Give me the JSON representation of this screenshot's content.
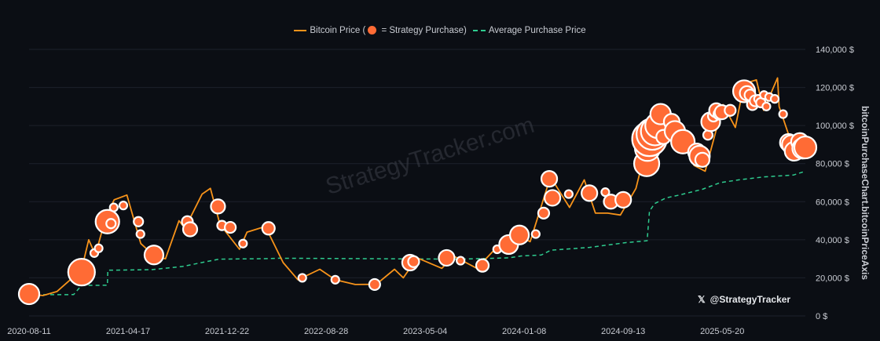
{
  "legend": {
    "price_label": "Bitcoin Price (",
    "price_label_suffix": " = Strategy Purchase)",
    "avg_label": "Average Purchase Price"
  },
  "watermark": "StrategyTracker.com",
  "handle": "@StrategyTracker",
  "colors": {
    "background": "#0b0e14",
    "price_line": "#f7931a",
    "purchase_dot": "#ff6b35",
    "avg_line": "#2ecc8f",
    "grid": "#1c212b",
    "text": "#c9ccd3"
  },
  "chart_data": {
    "type": "line",
    "title": "",
    "xlabel": "",
    "ylabel": "bitcoinPurchaseChart.bitcoinPriceAxis",
    "x_range": [
      "2020-08-11",
      "2025-12-15"
    ],
    "ylim": [
      0,
      140000
    ],
    "y_ticks": [
      "0 $",
      "20,000 $",
      "40,000 $",
      "60,000 $",
      "80,000 $",
      "100,000 $",
      "120,000 $",
      "140,000 $"
    ],
    "y_tick_values": [
      0,
      20000,
      40000,
      60000,
      80000,
      100000,
      120000,
      140000
    ],
    "x_ticks": [
      "2020-08-11",
      "2021-04-17",
      "2021-12-22",
      "2022-08-28",
      "2023-05-04",
      "2024-01-08",
      "2024-09-13",
      "2025-05-20"
    ],
    "grid": true,
    "legend_position": "top-center",
    "series": [
      {
        "name": "Bitcoin Price",
        "points": [
          [
            "2020-08-11",
            11500
          ],
          [
            "2020-09-15",
            10700
          ],
          [
            "2020-10-20",
            12800
          ],
          [
            "2020-11-20",
            18500
          ],
          [
            "2020-12-20",
            23500
          ],
          [
            "2021-01-08",
            40000
          ],
          [
            "2021-01-25",
            32000
          ],
          [
            "2021-02-20",
            52000
          ],
          [
            "2021-03-13",
            61000
          ],
          [
            "2021-04-14",
            63500
          ],
          [
            "2021-05-19",
            38000
          ],
          [
            "2021-06-22",
            31500
          ],
          [
            "2021-07-20",
            30000
          ],
          [
            "2021-08-23",
            50000
          ],
          [
            "2021-09-07",
            46000
          ],
          [
            "2021-10-20",
            64000
          ],
          [
            "2021-11-10",
            67000
          ],
          [
            "2021-12-04",
            48000
          ],
          [
            "2022-01-22",
            35000
          ],
          [
            "2022-02-10",
            44000
          ],
          [
            "2022-03-28",
            47000
          ],
          [
            "2022-05-12",
            28000
          ],
          [
            "2022-06-18",
            19000
          ],
          [
            "2022-08-12",
            24500
          ],
          [
            "2022-09-20",
            19000
          ],
          [
            "2022-11-09",
            16500
          ],
          [
            "2023-01-01",
            16600
          ],
          [
            "2023-02-16",
            24500
          ],
          [
            "2023-03-10",
            20000
          ],
          [
            "2023-04-14",
            30500
          ],
          [
            "2023-06-15",
            25000
          ],
          [
            "2023-07-14",
            31500
          ],
          [
            "2023-09-11",
            25000
          ],
          [
            "2023-10-24",
            34500
          ],
          [
            "2023-12-08",
            44000
          ],
          [
            "2024-01-23",
            39000
          ],
          [
            "2024-03-14",
            73000
          ],
          [
            "2024-05-01",
            57000
          ],
          [
            "2024-06-07",
            71500
          ],
          [
            "2024-07-05",
            54000
          ],
          [
            "2024-08-05",
            54000
          ],
          [
            "2024-09-06",
            53000
          ],
          [
            "2024-10-15",
            67000
          ],
          [
            "2024-11-22",
            99000
          ],
          [
            "2024-12-17",
            106000
          ],
          [
            "2025-01-13",
            91000
          ],
          [
            "2025-01-21",
            106000
          ],
          [
            "2025-03-10",
            79000
          ],
          [
            "2025-04-07",
            76000
          ],
          [
            "2025-05-22",
            111000
          ],
          [
            "2025-06-22",
            99000
          ],
          [
            "2025-07-14",
            122000
          ],
          [
            "2025-08-14",
            124000
          ],
          [
            "2025-09-01",
            108000
          ],
          [
            "2025-10-06",
            125000
          ],
          [
            "2025-10-10",
            110000
          ],
          [
            "2025-11-21",
            84000
          ],
          [
            "2025-12-15",
            88000
          ]
        ]
      },
      {
        "name": "Average Purchase Price",
        "points": [
          [
            "2020-08-11",
            11100
          ],
          [
            "2020-12-01",
            11200
          ],
          [
            "2020-12-21",
            16000
          ],
          [
            "2021-02-24",
            16100
          ],
          [
            "2021-02-25",
            24000
          ],
          [
            "2021-06-15",
            24300
          ],
          [
            "2021-09-01",
            26000
          ],
          [
            "2021-12-01",
            29800
          ],
          [
            "2022-04-05",
            30100
          ],
          [
            "2022-05-01",
            30300
          ],
          [
            "2023-08-01",
            29800
          ],
          [
            "2023-12-01",
            30500
          ],
          [
            "2024-01-01",
            31500
          ],
          [
            "2024-02-20",
            32000
          ],
          [
            "2024-03-15",
            34500
          ],
          [
            "2024-06-20",
            36000
          ],
          [
            "2024-09-20",
            38500
          ],
          [
            "2024-11-12",
            39500
          ],
          [
            "2024-11-18",
            55000
          ],
          [
            "2024-12-01",
            59000
          ],
          [
            "2024-12-30",
            62000
          ],
          [
            "2025-02-01",
            63500
          ],
          [
            "2025-03-31",
            66500
          ],
          [
            "2025-05-15",
            70000
          ],
          [
            "2025-07-01",
            71500
          ],
          [
            "2025-09-01",
            73000
          ],
          [
            "2025-11-15",
            74000
          ],
          [
            "2025-12-15",
            76000
          ]
        ]
      }
    ],
    "purchases": [
      [
        "2020-08-11",
        11500,
        13
      ],
      [
        "2020-12-21",
        23000,
        17
      ],
      [
        "2021-01-22",
        33000,
        5
      ],
      [
        "2021-02-02",
        35500,
        5
      ],
      [
        "2021-02-24",
        49500,
        15
      ],
      [
        "2021-03-05",
        48500,
        6
      ],
      [
        "2021-03-12",
        57000,
        5
      ],
      [
        "2021-04-05",
        58000,
        5
      ],
      [
        "2021-05-13",
        49500,
        6
      ],
      [
        "2021-05-18",
        43000,
        5
      ],
      [
        "2021-06-21",
        32000,
        12
      ],
      [
        "2021-09-13",
        49500,
        7
      ],
      [
        "2021-09-20",
        45500,
        9
      ],
      [
        "2021-11-29",
        57500,
        9
      ],
      [
        "2021-12-09",
        47500,
        6
      ],
      [
        "2021-12-30",
        46500,
        7
      ],
      [
        "2022-01-31",
        38000,
        5
      ],
      [
        "2022-04-05",
        46000,
        8
      ],
      [
        "2022-06-29",
        20000,
        5
      ],
      [
        "2022-09-20",
        19000,
        5
      ],
      [
        "2022-12-28",
        16500,
        7
      ],
      [
        "2023-03-27",
        28000,
        10
      ],
      [
        "2023-04-05",
        28500,
        7
      ],
      [
        "2023-06-27",
        30500,
        10
      ],
      [
        "2023-08-01",
        29000,
        5
      ],
      [
        "2023-09-25",
        26500,
        8
      ],
      [
        "2023-11-01",
        35000,
        5
      ],
      [
        "2023-11-30",
        37500,
        12
      ],
      [
        "2023-12-27",
        42500,
        12
      ],
      [
        "2024-02-06",
        43000,
        5
      ],
      [
        "2024-02-26",
        54000,
        7
      ],
      [
        "2024-03-11",
        72000,
        10
      ],
      [
        "2024-03-19",
        62000,
        10
      ],
      [
        "2024-04-29",
        64000,
        5
      ],
      [
        "2024-06-20",
        64500,
        10
      ],
      [
        "2024-07-30",
        65000,
        5
      ],
      [
        "2024-08-13",
        60000,
        9
      ],
      [
        "2024-09-13",
        61000,
        10
      ],
      [
        "2024-11-11",
        80000,
        16
      ],
      [
        "2024-11-13",
        88000,
        16
      ],
      [
        "2024-11-18",
        93000,
        22
      ],
      [
        "2024-11-25",
        95500,
        20
      ],
      [
        "2024-12-02",
        97000,
        18
      ],
      [
        "2024-12-09",
        100000,
        16
      ],
      [
        "2024-12-16",
        106000,
        13
      ],
      [
        "2024-12-23",
        94000,
        9
      ],
      [
        "2025-01-13",
        102000,
        10
      ],
      [
        "2025-01-21",
        97000,
        13
      ],
      [
        "2025-02-10",
        91500,
        15
      ],
      [
        "2025-03-17",
        86000,
        11
      ],
      [
        "2025-03-24",
        84000,
        13
      ],
      [
        "2025-03-31",
        82000,
        9
      ],
      [
        "2025-04-14",
        95000,
        6
      ],
      [
        "2025-04-21",
        102000,
        12
      ],
      [
        "2025-04-28",
        105000,
        7
      ],
      [
        "2025-05-05",
        108000,
        9
      ],
      [
        "2025-05-12",
        106000,
        7
      ],
      [
        "2025-05-19",
        107000,
        9
      ],
      [
        "2025-06-09",
        108000,
        7
      ],
      [
        "2025-07-14",
        118000,
        14
      ],
      [
        "2025-07-21",
        117000,
        9
      ],
      [
        "2025-07-29",
        116000,
        7
      ],
      [
        "2025-08-04",
        111000,
        7
      ],
      [
        "2025-08-11",
        113000,
        7
      ],
      [
        "2025-08-18",
        114000,
        5
      ],
      [
        "2025-08-25",
        112000,
        6
      ],
      [
        "2025-09-02",
        116000,
        5
      ],
      [
        "2025-09-08",
        110000,
        5
      ],
      [
        "2025-09-15",
        115000,
        5
      ],
      [
        "2025-09-29",
        114000,
        5
      ],
      [
        "2025-10-20",
        106000,
        5
      ],
      [
        "2025-11-03",
        91000,
        11
      ],
      [
        "2025-11-10",
        90000,
        12
      ],
      [
        "2025-11-17",
        86500,
        12
      ],
      [
        "2025-12-01",
        91500,
        11
      ],
      [
        "2025-12-08",
        88000,
        13
      ],
      [
        "2025-12-15",
        88500,
        14
      ]
    ]
  }
}
